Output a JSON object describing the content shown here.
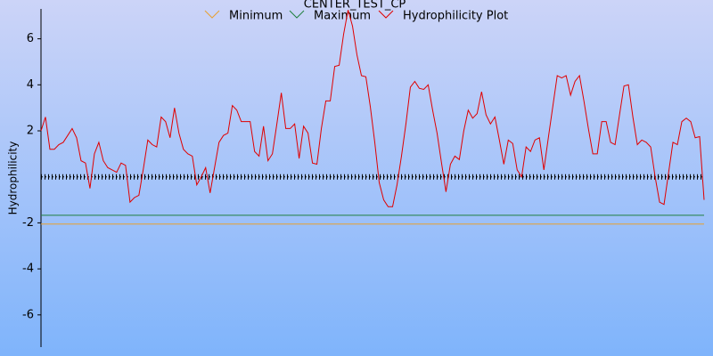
{
  "chart_data": {
    "type": "line",
    "title": "CENTER_TEST_CP",
    "ylabel": "Hydrophilicity",
    "ylim": [
      -7.4,
      7.3
    ],
    "yticks": [
      -6,
      -4,
      -2,
      2,
      4,
      6
    ],
    "zero_line": 0,
    "series": [
      {
        "name": "Minimum",
        "color": "#e8a030",
        "values": [
          -2.05
        ]
      },
      {
        "name": "Maximum",
        "color": "#208040",
        "values": [
          -1.67
        ]
      },
      {
        "name": "Hydrophilicity Plot",
        "color": "#e00000",
        "values": [
          2.0,
          2.6,
          1.2,
          1.2,
          1.4,
          1.5,
          1.8,
          2.1,
          1.7,
          0.7,
          0.6,
          -0.5,
          1.0,
          1.5,
          0.7,
          0.4,
          0.3,
          0.2,
          0.6,
          0.5,
          -1.1,
          -0.9,
          -0.8,
          0.35,
          1.6,
          1.4,
          1.3,
          2.6,
          2.4,
          1.7,
          3.0,
          1.9,
          1.2,
          1.0,
          0.9,
          -0.35,
          0,
          0.4,
          -0.7,
          0.4,
          1.5,
          1.8,
          1.9,
          3.1,
          2.9,
          2.4,
          2.4,
          2.4,
          1.1,
          0.9,
          2.2,
          0.7,
          1.0,
          2.3,
          3.65,
          2.1,
          2.1,
          2.3,
          0.8,
          2.2,
          1.9,
          0.6,
          0.55,
          2.1,
          3.3,
          3.3,
          4.8,
          4.85,
          6.2,
          7.25,
          6.55,
          5.3,
          4.4,
          4.35,
          3.05,
          1.5,
          -0.25,
          -1.0,
          -1.3,
          -1.3,
          -0.35,
          0.9,
          2.3,
          3.9,
          4.15,
          3.85,
          3.8,
          4.0,
          2.9,
          1.9,
          0.6,
          -0.65,
          0.55,
          0.9,
          0.75,
          2.0,
          2.9,
          2.55,
          2.75,
          3.7,
          2.7,
          2.3,
          2.6,
          1.6,
          0.55,
          1.6,
          1.45,
          0.3,
          0,
          1.3,
          1.1,
          1.6,
          1.7,
          0.3,
          1.7,
          3.05,
          4.4,
          4.3,
          4.4,
          3.55,
          4.15,
          4.4,
          3.3,
          2.1,
          1.0,
          1.0,
          2.4,
          2.4,
          1.5,
          1.4,
          2.7,
          3.95,
          4.0,
          2.6,
          1.4,
          1.6,
          1.5,
          1.3,
          0,
          -1.1,
          -1.2,
          0.15,
          1.5,
          1.4,
          2.4,
          2.55,
          2.4,
          1.7,
          1.75,
          -1.0
        ]
      }
    ]
  }
}
